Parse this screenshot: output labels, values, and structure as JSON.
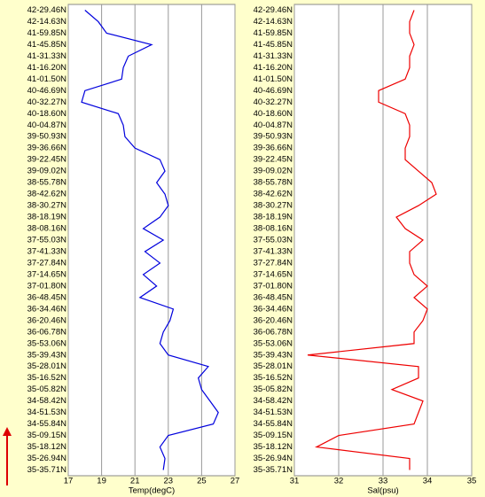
{
  "chart_data": [
    {
      "type": "line",
      "orientation": "horizontal",
      "xlabel": "Temp(degC)",
      "categories": [
        "42-29.46N",
        "42-14.63N",
        "41-59.85N",
        "41-45.85N",
        "41-31.33N",
        "41-16.20N",
        "41-01.50N",
        "40-46.69N",
        "40-32.27N",
        "40-18.60N",
        "40-04.87N",
        "39-50.93N",
        "39-36.66N",
        "39-22.45N",
        "39-09.02N",
        "38-55.78N",
        "38-42.62N",
        "38-30.27N",
        "38-18.19N",
        "38-08.16N",
        "37-55.03N",
        "37-41.33N",
        "37-27.84N",
        "37-14.65N",
        "37-01.80N",
        "36-48.45N",
        "36-34.46N",
        "36-20.46N",
        "36-06.78N",
        "35-53.06N",
        "35-39.43N",
        "35-28.01N",
        "35-16.52N",
        "35-05.82N",
        "34-58.42N",
        "34-51.53N",
        "34-55.84N",
        "35-09.15N",
        "35-18.12N",
        "35-26.94N",
        "35-35.71N"
      ],
      "series": [
        {
          "color": "#0000dd",
          "values": [
            18,
            18.8,
            19.3,
            22,
            20.6,
            20.3,
            20.2,
            18,
            17.8,
            20,
            20.3,
            20.4,
            21,
            22.5,
            22.8,
            22.3,
            22.8,
            23,
            22.5,
            21.5,
            22.7,
            21.6,
            22.5,
            21.5,
            22.3,
            21.3,
            23.3,
            23.1,
            22.7,
            22.5,
            23,
            25.4,
            24.8,
            25,
            25.5,
            26,
            25.7,
            23,
            22.5,
            22.8,
            22.7
          ]
        }
      ],
      "xlim": [
        17,
        27
      ],
      "xticks": [
        17,
        19,
        21,
        23,
        25,
        27
      ],
      "grid": true
    },
    {
      "type": "line",
      "orientation": "horizontal",
      "xlabel": "Sal(psu)",
      "categories": [
        "42-29.46N",
        "42-14.63N",
        "41-59.85N",
        "41-45.85N",
        "41-31.33N",
        "41-16.20N",
        "41-01.50N",
        "40-46.69N",
        "40-32.27N",
        "40-18.60N",
        "40-04.87N",
        "39-50.93N",
        "39-36.66N",
        "39-22.45N",
        "39-09.02N",
        "38-55.78N",
        "38-42.62N",
        "38-30.27N",
        "38-18.19N",
        "38-08.16N",
        "37-55.03N",
        "37-41.33N",
        "37-27.84N",
        "37-14.65N",
        "37-01.80N",
        "36-48.45N",
        "36-34.46N",
        "36-20.46N",
        "36-06.78N",
        "35-53.06N",
        "35-39.43N",
        "35-28.01N",
        "35-16.52N",
        "35-05.82N",
        "34-58.42N",
        "34-51.53N",
        "34-55.84N",
        "35-09.15N",
        "35-18.12N",
        "35-26.94N",
        "35-35.71N"
      ],
      "series": [
        {
          "color": "#ee0000",
          "values": [
            33.7,
            33.6,
            33.6,
            33.7,
            33.6,
            33.6,
            33.5,
            32.9,
            32.9,
            33.5,
            33.6,
            33.6,
            33.5,
            33.5,
            33.8,
            34.1,
            34.2,
            33.8,
            33.3,
            33.5,
            33.9,
            33.6,
            33.6,
            33.7,
            34,
            33.7,
            34,
            33.9,
            33.7,
            33.7,
            31.3,
            33.8,
            33.8,
            33.2,
            33.9,
            33.8,
            33.7,
            32,
            31.5,
            33.6,
            33.6
          ]
        }
      ],
      "xlim": [
        31,
        35
      ],
      "xticks": [
        31,
        32,
        33,
        34,
        35
      ],
      "grid": true
    }
  ]
}
